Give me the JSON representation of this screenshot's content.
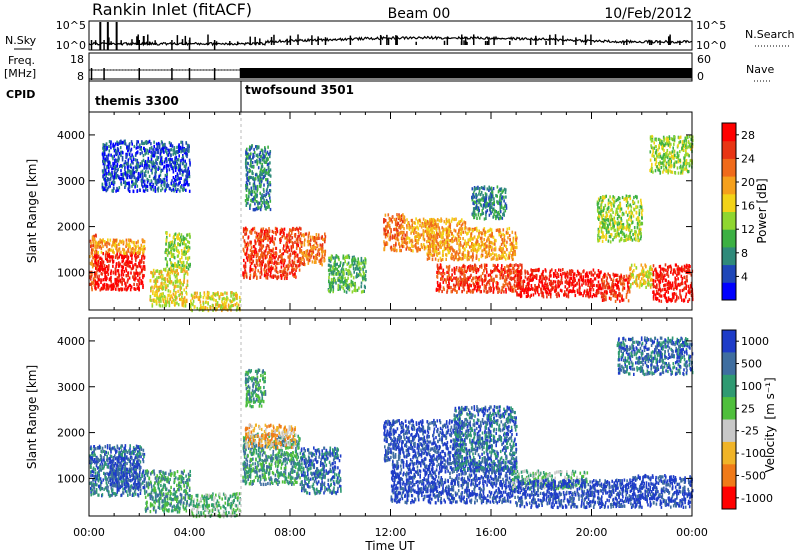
{
  "header": {
    "station": "Rankin Inlet (fitACF)",
    "beam": "Beam 00",
    "date": "10/Feb/2012"
  },
  "colors": {
    "background": "#ffffff",
    "ink": "#000000",
    "ground_scatter": "#c8c8c8"
  },
  "chart_data": [
    {
      "type": "line",
      "panel": "noise",
      "left_label": "N.Sky",
      "right_label": "N.Search",
      "left_ticks": [
        "10^5",
        "10^0"
      ],
      "right_ticks": [
        "10^5",
        "10^0"
      ],
      "legend_style": "dotted",
      "x_range_hours": [
        0,
        24
      ],
      "series": [
        {
          "name": "N.Sky",
          "style": "solid"
        },
        {
          "name": "N.Search",
          "style": "dotted"
        }
      ]
    },
    {
      "type": "line",
      "panel": "frequency",
      "left_label_top": "Freq.",
      "left_label_bottom": "[MHz]",
      "right_label": "Nave",
      "left_ticks": [
        18,
        8
      ],
      "right_ticks": [
        60,
        0
      ],
      "legend_style": "dotted",
      "x_range_hours": [
        0,
        24
      ],
      "nave_dense_from_hour": 6.0
    },
    {
      "type": "table",
      "panel": "cpid",
      "label": "CPID",
      "segments": [
        {
          "name": "themis 3300",
          "start_hour": 0.0,
          "end_hour": 6.0
        },
        {
          "name": "twofsound 3501",
          "start_hour": 6.0,
          "end_hour": 24.0
        }
      ]
    },
    {
      "type": "heatmap",
      "panel": "power",
      "ylabel": "Slant Range [km]",
      "colorbar_label": "Power [dB]",
      "x_range_hours": [
        0,
        24
      ],
      "y_range_km": [
        180,
        4500
      ],
      "y_ticks": [
        1000,
        2000,
        3000,
        4000
      ],
      "colorbar": {
        "ticks": [
          4,
          8,
          12,
          16,
          20,
          24,
          28
        ],
        "range": [
          0,
          30
        ],
        "colors": [
          "#0000ff",
          "#1f47b8",
          "#2f8a7a",
          "#3cb043",
          "#8fd630",
          "#f2d318",
          "#f5a01c",
          "#f06a1a",
          "#e83514",
          "#ff0000"
        ]
      },
      "scatter_regions": [
        {
          "t0": 0.0,
          "t1": 0.3,
          "r0": 650,
          "r1": 1850,
          "level": 7
        },
        {
          "t0": 0.2,
          "t1": 2.2,
          "r0": 650,
          "r1": 1450,
          "level": 9
        },
        {
          "t0": 0.2,
          "t1": 2.2,
          "r0": 1450,
          "r1": 1750,
          "level": 6
        },
        {
          "t0": 2.4,
          "t1": 3.9,
          "r0": 300,
          "r1": 1100,
          "level": 5
        },
        {
          "t0": 3.0,
          "t1": 4.0,
          "r0": 1100,
          "r1": 1900,
          "level": 4
        },
        {
          "t0": 4.0,
          "t1": 6.0,
          "r0": 200,
          "r1": 600,
          "level": 5
        },
        {
          "t0": 6.1,
          "t1": 8.4,
          "r0": 900,
          "r1": 2000,
          "level": 8
        },
        {
          "t0": 6.2,
          "t1": 7.2,
          "r0": 2400,
          "r1": 3800,
          "level": 2
        },
        {
          "t0": 8.4,
          "t1": 9.4,
          "r0": 1200,
          "r1": 1900,
          "level": 7
        },
        {
          "t0": 9.5,
          "t1": 11.0,
          "r0": 600,
          "r1": 1400,
          "level": 3
        },
        {
          "t0": 11.7,
          "t1": 12.6,
          "r0": 1500,
          "r1": 2300,
          "level": 7
        },
        {
          "t0": 12.6,
          "t1": 13.8,
          "r0": 1500,
          "r1": 2200,
          "level": 6
        },
        {
          "t0": 13.4,
          "t1": 15.0,
          "r0": 1300,
          "r1": 2200,
          "level": 6
        },
        {
          "t0": 15.0,
          "t1": 17.0,
          "r0": 1300,
          "r1": 2000,
          "level": 6
        },
        {
          "t0": 13.8,
          "t1": 17.2,
          "r0": 600,
          "r1": 1200,
          "level": 8
        },
        {
          "t0": 17.0,
          "t1": 20.4,
          "r0": 500,
          "r1": 1100,
          "level": 9
        },
        {
          "t0": 20.4,
          "t1": 21.5,
          "r0": 400,
          "r1": 1000,
          "level": 8
        },
        {
          "t0": 21.5,
          "t1": 22.4,
          "r0": 700,
          "r1": 1200,
          "level": 5
        },
        {
          "t0": 22.4,
          "t1": 24.0,
          "r0": 400,
          "r1": 1200,
          "level": 9
        },
        {
          "t0": 15.2,
          "t1": 16.6,
          "r0": 2200,
          "r1": 2900,
          "level": 2
        },
        {
          "t0": 20.2,
          "t1": 22.0,
          "r0": 1700,
          "r1": 2700,
          "level": 4
        },
        {
          "t0": 22.3,
          "t1": 24.0,
          "r0": 3200,
          "r1": 4000,
          "level": 4
        },
        {
          "t0": 0.5,
          "t1": 4.0,
          "r0": 2800,
          "r1": 3900,
          "level": 1
        }
      ]
    },
    {
      "type": "heatmap",
      "panel": "velocity",
      "ylabel": "Slant Range [km]",
      "xlabel": "Time UT",
      "colorbar_label": "Velocity",
      "colorbar_unit": "[m s⁻¹]",
      "x_range_hours": [
        0,
        24
      ],
      "x_ticks": [
        "00:00",
        "04:00",
        "08:00",
        "12:00",
        "16:00",
        "20:00",
        "00:00"
      ],
      "y_range_km": [
        180,
        4500
      ],
      "y_ticks": [
        1000,
        2000,
        3000,
        4000
      ],
      "colorbar": {
        "ticks": [
          "1000",
          "500",
          "100",
          "25",
          "-25",
          "-100",
          "-500",
          "-1000"
        ],
        "colors": [
          "#1e3cc8",
          "#3f6ea0",
          "#2f9a72",
          "#4fbf3c",
          "#c8c8c8",
          "#f0b428",
          "#f07a18",
          "#ff0000"
        ]
      },
      "scatter_regions": [
        {
          "t0": 0.0,
          "t1": 2.2,
          "r0": 650,
          "r1": 1750,
          "level": 1
        },
        {
          "t0": 0.8,
          "t1": 2.0,
          "r0": 800,
          "r1": 1500,
          "level": 0
        },
        {
          "t0": 2.2,
          "t1": 4.0,
          "r0": 300,
          "r1": 1200,
          "level": 2
        },
        {
          "t0": 4.0,
          "t1": 6.0,
          "r0": 200,
          "r1": 700,
          "level": 3
        },
        {
          "t0": 6.1,
          "t1": 8.4,
          "r0": 900,
          "r1": 2000,
          "level": 2
        },
        {
          "t0": 6.2,
          "t1": 8.2,
          "r0": 1700,
          "r1": 2200,
          "level": 5
        },
        {
          "t0": 8.4,
          "t1": 10.0,
          "r0": 700,
          "r1": 1700,
          "level": 1
        },
        {
          "t0": 11.7,
          "t1": 14.8,
          "r0": 1400,
          "r1": 2300,
          "level": 0
        },
        {
          "t0": 12.0,
          "t1": 17.0,
          "r0": 500,
          "r1": 1400,
          "level": 0
        },
        {
          "t0": 14.5,
          "t1": 17.0,
          "r0": 1200,
          "r1": 2600,
          "level": 1
        },
        {
          "t0": 16.8,
          "t1": 19.8,
          "r0": 800,
          "r1": 1200,
          "level": 3
        },
        {
          "t0": 17.0,
          "t1": 21.6,
          "r0": 400,
          "r1": 1000,
          "level": 0
        },
        {
          "t0": 21.6,
          "t1": 24.0,
          "r0": 400,
          "r1": 1100,
          "level": 0
        },
        {
          "t0": 21.0,
          "t1": 24.0,
          "r0": 3300,
          "r1": 4100,
          "level": 1
        },
        {
          "t0": 6.2,
          "t1": 7.0,
          "r0": 2600,
          "r1": 3400,
          "level": 2
        }
      ]
    }
  ],
  "time_axis": {
    "ticks": [
      "00:00",
      "04:00",
      "08:00",
      "12:00",
      "16:00",
      "20:00",
      "00:00"
    ]
  }
}
